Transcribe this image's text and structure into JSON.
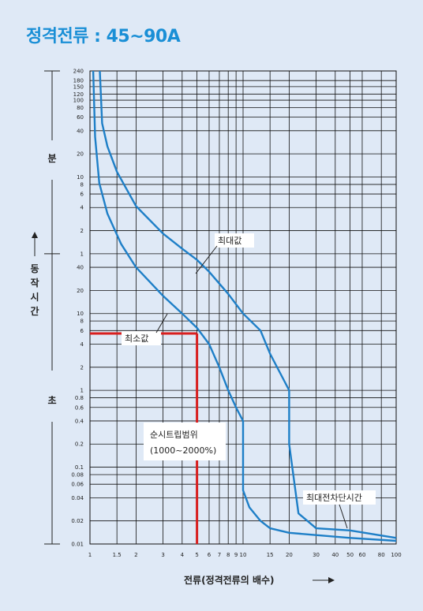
{
  "title": "정격전류 : 45~90A",
  "colors": {
    "background": "#dfe9f6",
    "title": "#1a8fd6",
    "curve": "#1e7fc7",
    "trip_range": "#d81f1f",
    "grid": "#111111"
  },
  "chart_data": {
    "type": "line",
    "title": "정격전류 : 45~90A",
    "x_scale": "log",
    "xlim": [
      1,
      100
    ],
    "xlabel": "전류(정격전류의  배수)",
    "x_ticks": [
      "1",
      "1.5",
      "2",
      "3",
      "4",
      "5",
      "6",
      "7",
      "8",
      "9",
      "10",
      "15",
      "20",
      "30",
      "40",
      "50",
      "60",
      "80",
      "100"
    ],
    "y_scale": "log",
    "y_axis_label": "동작시간",
    "y_units": [
      {
        "label": "분",
        "ticks": [
          "240",
          "180",
          "150",
          "120",
          "100",
          "80",
          "60",
          "40",
          "20",
          "10",
          "8",
          "6",
          "4",
          "2",
          "1"
        ]
      },
      {
        "label": "초",
        "ticks": [
          "40",
          "20",
          "10",
          "8",
          "6",
          "4",
          "2",
          "1",
          "0.8",
          "0.6",
          "0.4",
          "0.2",
          "0.1",
          "0.08",
          "0.06",
          "0.04",
          "0.02",
          "0.01"
        ]
      }
    ],
    "series": [
      {
        "name": "최대값",
        "unit_of_time": "seconds",
        "x": [
          1.16,
          1.2,
          1.3,
          1.5,
          2,
          3,
          4,
          5,
          6,
          8,
          10,
          13,
          15,
          18,
          20,
          20,
          23,
          30,
          50,
          100
        ],
        "y": [
          14400,
          3000,
          1500,
          700,
          250,
          110,
          70,
          50,
          35,
          18,
          10,
          6,
          3,
          1.5,
          1,
          0.2,
          0.025,
          0.016,
          0.015,
          0.012
        ]
      },
      {
        "name": "최소값",
        "unit_of_time": "seconds",
        "x": [
          1.05,
          1.08,
          1.15,
          1.3,
          1.6,
          2,
          3,
          4,
          5,
          6,
          7,
          8,
          9,
          10,
          10,
          11,
          13,
          15,
          20,
          50,
          100
        ],
        "y": [
          14400,
          2000,
          500,
          200,
          80,
          40,
          17,
          10,
          6.5,
          4,
          2,
          1,
          0.6,
          0.4,
          0.05,
          0.03,
          0.02,
          0.016,
          0.014,
          0.012,
          0.011
        ]
      }
    ],
    "trip_range": {
      "label": "순시트립범위",
      "range_text": "(1000~2000%)",
      "x": 5,
      "y_seconds": 5.5
    },
    "annotations": [
      {
        "text": "최대값"
      },
      {
        "text": "최소값"
      },
      {
        "text": "최대전차단시간"
      }
    ],
    "grid": true
  }
}
